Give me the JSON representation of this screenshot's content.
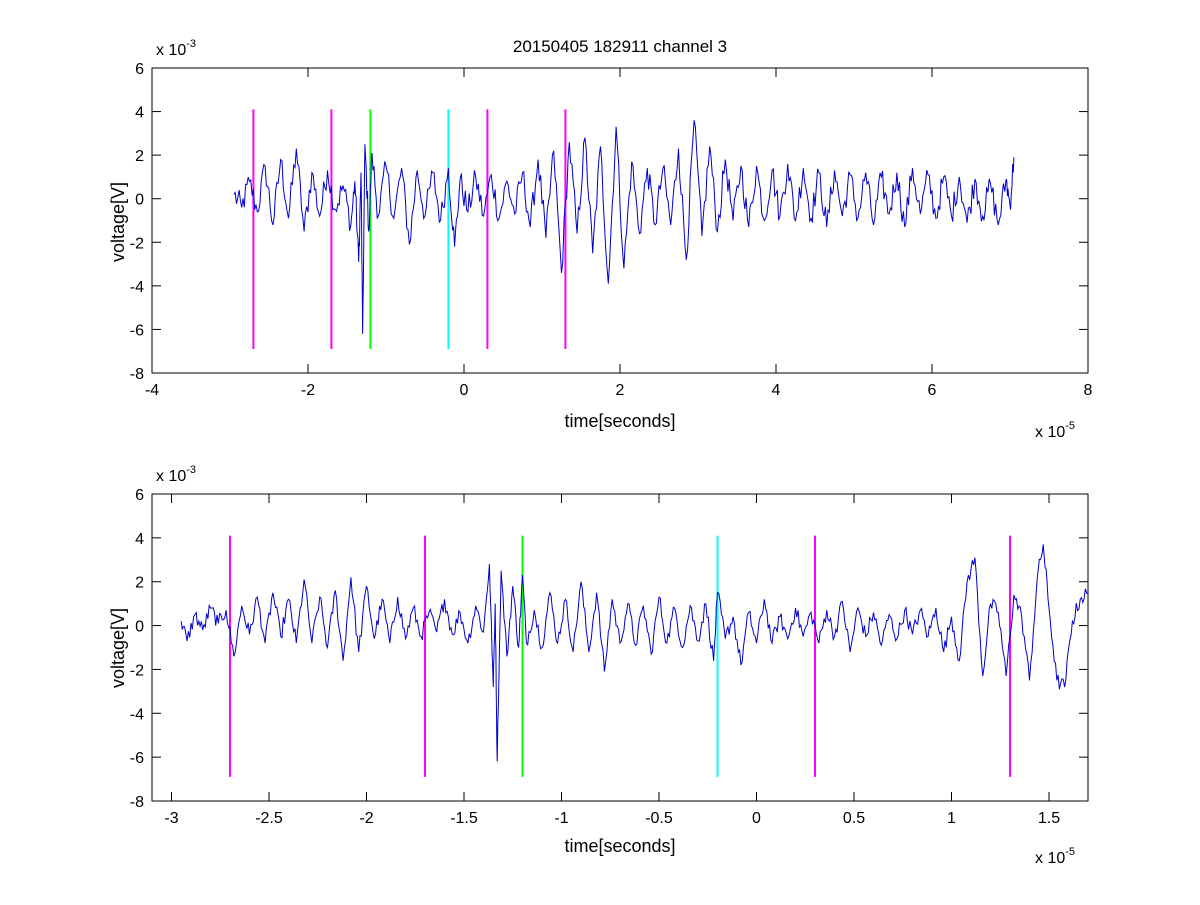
{
  "chart_data": [
    {
      "type": "line",
      "title": "20150405 182911 channel 3",
      "xlabel": "time[seconds]",
      "ylabel": "voltage[V]",
      "x_multiplier": {
        "base": "x 10",
        "exp": "-5"
      },
      "y_multiplier": {
        "base": "x 10",
        "exp": "-3"
      },
      "xlim": [
        -4,
        8
      ],
      "ylim": [
        -8,
        6
      ],
      "xticks": [
        "-4",
        "-2",
        "0",
        "2",
        "4",
        "6",
        "8"
      ],
      "xtick_values": [
        -4,
        -2,
        0,
        2,
        4,
        6,
        8
      ],
      "yticks": [
        "6",
        "4",
        "2",
        "0",
        "-2",
        "-4",
        "-6",
        "-8"
      ],
      "ytick_values": [
        6,
        4,
        2,
        0,
        -2,
        -4,
        -6,
        -8
      ],
      "grid": false,
      "series": [
        {
          "color": "#0000cc",
          "x_start": -2.95,
          "x_end": 7.05,
          "points": [
            [
              -2.95,
              0.2
            ],
            [
              -2.85,
              -0.4
            ],
            [
              -2.75,
              0.8
            ],
            [
              -2.65,
              -0.6
            ],
            [
              -2.55,
              1.5
            ],
            [
              -2.45,
              -1.2
            ],
            [
              -2.35,
              1.8
            ],
            [
              -2.25,
              -0.9
            ],
            [
              -2.15,
              2.3
            ],
            [
              -2.05,
              -1.5
            ],
            [
              -1.95,
              1.2
            ],
            [
              -1.85,
              -0.8
            ],
            [
              -1.75,
              1.3
            ],
            [
              -1.65,
              -0.5
            ],
            [
              -1.55,
              0.6
            ],
            [
              -1.45,
              -1.2
            ],
            [
              -1.4,
              0.8
            ],
            [
              -1.35,
              -2.9
            ],
            [
              -1.32,
              1.2
            ],
            [
              -1.3,
              -6.2
            ],
            [
              -1.27,
              2.5
            ],
            [
              -1.22,
              -1.5
            ],
            [
              -1.18,
              2.1
            ],
            [
              -1.1,
              -0.8
            ],
            [
              -1.0,
              1.5
            ],
            [
              -0.9,
              -0.9
            ],
            [
              -0.8,
              1.4
            ],
            [
              -0.7,
              -2.1
            ],
            [
              -0.6,
              1.3
            ],
            [
              -0.5,
              -0.8
            ],
            [
              -0.4,
              1.2
            ],
            [
              -0.3,
              -1.0
            ],
            [
              -0.2,
              1.4
            ],
            [
              -0.12,
              -2.2
            ],
            [
              -0.05,
              0.9
            ],
            [
              0.05,
              -0.6
            ],
            [
              0.15,
              1.0
            ],
            [
              0.25,
              -0.8
            ],
            [
              0.35,
              1.1
            ],
            [
              0.45,
              -0.9
            ],
            [
              0.55,
              0.8
            ],
            [
              0.65,
              -0.7
            ],
            [
              0.75,
              1.2
            ],
            [
              0.85,
              -1.3
            ],
            [
              0.95,
              1.8
            ],
            [
              1.05,
              -1.8
            ],
            [
              1.15,
              2.2
            ],
            [
              1.25,
              -3.4
            ],
            [
              1.35,
              2.6
            ],
            [
              1.45,
              -1.6
            ],
            [
              1.55,
              2.8
            ],
            [
              1.65,
              -2.5
            ],
            [
              1.75,
              2.4
            ],
            [
              1.85,
              -3.9
            ],
            [
              1.95,
              3.3
            ],
            [
              2.05,
              -3.2
            ],
            [
              2.15,
              1.7
            ],
            [
              2.25,
              -1.6
            ],
            [
              2.35,
              1.4
            ],
            [
              2.45,
              -1.2
            ],
            [
              2.55,
              1.4
            ],
            [
              2.65,
              -1.2
            ],
            [
              2.75,
              2.3
            ],
            [
              2.85,
              -2.8
            ],
            [
              2.95,
              3.6
            ],
            [
              3.05,
              -1.7
            ],
            [
              3.15,
              2.4
            ],
            [
              3.25,
              -1.5
            ],
            [
              3.35,
              1.8
            ],
            [
              3.45,
              -1.0
            ],
            [
              3.55,
              1.5
            ],
            [
              3.65,
              -1.3
            ],
            [
              3.75,
              1.5
            ],
            [
              3.85,
              -1.0
            ],
            [
              3.95,
              1.3
            ],
            [
              4.05,
              -0.8
            ],
            [
              4.15,
              1.6
            ],
            [
              4.25,
              -1.0
            ],
            [
              4.35,
              1.4
            ],
            [
              4.45,
              -0.9
            ],
            [
              4.55,
              1.2
            ],
            [
              4.65,
              -1.3
            ],
            [
              4.75,
              1.3
            ],
            [
              4.85,
              -0.8
            ],
            [
              4.95,
              1.1
            ],
            [
              5.05,
              -0.9
            ],
            [
              5.15,
              1.2
            ],
            [
              5.25,
              -1.2
            ],
            [
              5.35,
              1.0
            ],
            [
              5.45,
              -0.7
            ],
            [
              5.55,
              1.2
            ],
            [
              5.65,
              -1.3
            ],
            [
              5.75,
              1.4
            ],
            [
              5.85,
              -0.7
            ],
            [
              5.95,
              1.1
            ],
            [
              6.05,
              -0.9
            ],
            [
              6.15,
              1.0
            ],
            [
              6.25,
              -0.8
            ],
            [
              6.35,
              1.0
            ],
            [
              6.45,
              -1.1
            ],
            [
              6.55,
              0.9
            ],
            [
              6.65,
              -0.8
            ],
            [
              6.75,
              0.7
            ],
            [
              6.85,
              -1.2
            ],
            [
              6.95,
              0.9
            ],
            [
              7.0,
              -0.3
            ],
            [
              7.05,
              1.9
            ]
          ],
          "noise_amplitude": 0.6
        }
      ],
      "markers": [
        {
          "x": -2.7,
          "color": "#ff00ff",
          "y_top": 4.1,
          "y_bottom": -6.9
        },
        {
          "x": -1.7,
          "color": "#ff00ff",
          "y_top": 4.1,
          "y_bottom": -6.9
        },
        {
          "x": -1.2,
          "color": "#00ff00",
          "y_top": 4.1,
          "y_bottom": -6.9
        },
        {
          "x": -0.2,
          "color": "#00ffff",
          "y_top": 4.1,
          "y_bottom": -6.9
        },
        {
          "x": 0.3,
          "color": "#ff00ff",
          "y_top": 4.1,
          "y_bottom": -6.9
        },
        {
          "x": 1.3,
          "color": "#ff00ff",
          "y_top": 4.1,
          "y_bottom": -6.9
        }
      ]
    },
    {
      "type": "line",
      "title": "",
      "xlabel": "time[seconds]",
      "ylabel": "voltage[V]",
      "x_multiplier": {
        "base": "x 10",
        "exp": "-5"
      },
      "y_multiplier": {
        "base": "x 10",
        "exp": "-3"
      },
      "xlim": [
        -3.1,
        1.7
      ],
      "ylim": [
        -8,
        6
      ],
      "xticks": [
        "-3",
        "-2.5",
        "-2",
        "-1.5",
        "-1",
        "-0.5",
        "0",
        "0.5",
        "1",
        "1.5"
      ],
      "xtick_values": [
        -3,
        -2.5,
        -2,
        -1.5,
        -1,
        -0.5,
        0,
        0.5,
        1,
        1.5
      ],
      "yticks": [
        "6",
        "4",
        "2",
        "0",
        "-2",
        "-4",
        "-6",
        "-8"
      ],
      "ytick_values": [
        6,
        4,
        2,
        0,
        -2,
        -4,
        -6,
        -8
      ],
      "grid": false,
      "series": [
        {
          "color": "#0000cc",
          "x_start": -2.95,
          "x_end": 1.7,
          "points": [
            [
              -2.95,
              0.2
            ],
            [
              -2.92,
              -0.7
            ],
            [
              -2.88,
              0.5
            ],
            [
              -2.84,
              -0.2
            ],
            [
              -2.8,
              0.8
            ],
            [
              -2.76,
              0.1
            ],
            [
              -2.72,
              0.7
            ],
            [
              -2.68,
              -1.4
            ],
            [
              -2.64,
              0.9
            ],
            [
              -2.6,
              -0.4
            ],
            [
              -2.56,
              1.3
            ],
            [
              -2.52,
              -0.8
            ],
            [
              -2.48,
              1.5
            ],
            [
              -2.44,
              -0.5
            ],
            [
              -2.4,
              1.2
            ],
            [
              -2.36,
              -0.8
            ],
            [
              -2.32,
              2.1
            ],
            [
              -2.28,
              -0.8
            ],
            [
              -2.24,
              1.3
            ],
            [
              -2.2,
              -1.0
            ],
            [
              -2.16,
              1.6
            ],
            [
              -2.12,
              -1.6
            ],
            [
              -2.08,
              2.2
            ],
            [
              -2.04,
              -1.2
            ],
            [
              -2.0,
              1.8
            ],
            [
              -1.96,
              -0.6
            ],
            [
              -1.92,
              1.2
            ],
            [
              -1.88,
              -0.8
            ],
            [
              -1.84,
              1.3
            ],
            [
              -1.8,
              -0.6
            ],
            [
              -1.76,
              0.8
            ],
            [
              -1.72,
              -0.5
            ],
            [
              -1.68,
              0.6
            ],
            [
              -1.64,
              -0.3
            ],
            [
              -1.6,
              1.2
            ],
            [
              -1.56,
              -0.4
            ],
            [
              -1.52,
              0.6
            ],
            [
              -1.48,
              -0.8
            ],
            [
              -1.44,
              0.9
            ],
            [
              -1.4,
              -0.3
            ],
            [
              -1.37,
              2.8
            ],
            [
              -1.35,
              -2.8
            ],
            [
              -1.34,
              1.0
            ],
            [
              -1.33,
              -6.2
            ],
            [
              -1.31,
              2.5
            ],
            [
              -1.28,
              -1.4
            ],
            [
              -1.25,
              1.8
            ],
            [
              -1.22,
              -1.0
            ],
            [
              -1.2,
              2.3
            ],
            [
              -1.18,
              -0.8
            ],
            [
              -1.14,
              0.7
            ],
            [
              -1.1,
              -1.0
            ],
            [
              -1.06,
              1.5
            ],
            [
              -1.02,
              -0.8
            ],
            [
              -0.98,
              1.2
            ],
            [
              -0.94,
              -1.2
            ],
            [
              -0.9,
              2.0
            ],
            [
              -0.86,
              -1.2
            ],
            [
              -0.82,
              1.5
            ],
            [
              -0.78,
              -2.1
            ],
            [
              -0.74,
              1.2
            ],
            [
              -0.7,
              -0.8
            ],
            [
              -0.66,
              1.0
            ],
            [
              -0.62,
              -0.9
            ],
            [
              -0.58,
              0.9
            ],
            [
              -0.54,
              -1.3
            ],
            [
              -0.5,
              1.3
            ],
            [
              -0.46,
              -0.8
            ],
            [
              -0.42,
              0.8
            ],
            [
              -0.38,
              -1.0
            ],
            [
              -0.34,
              0.9
            ],
            [
              -0.3,
              -0.7
            ],
            [
              -0.26,
              1.0
            ],
            [
              -0.22,
              -1.6
            ],
            [
              -0.2,
              1.5
            ],
            [
              -0.16,
              -0.6
            ],
            [
              -0.12,
              0.4
            ],
            [
              -0.08,
              -1.8
            ],
            [
              -0.04,
              0.6
            ],
            [
              0.0,
              -0.8
            ],
            [
              0.04,
              1.2
            ],
            [
              0.08,
              -0.8
            ],
            [
              0.12,
              0.4
            ],
            [
              0.16,
              -0.6
            ],
            [
              0.2,
              0.8
            ],
            [
              0.24,
              -0.5
            ],
            [
              0.28,
              0.6
            ],
            [
              0.32,
              -0.8
            ],
            [
              0.36,
              0.7
            ],
            [
              0.4,
              -0.5
            ],
            [
              0.44,
              1.1
            ],
            [
              0.48,
              -1.2
            ],
            [
              0.52,
              0.8
            ],
            [
              0.56,
              -0.5
            ],
            [
              0.6,
              0.6
            ],
            [
              0.64,
              -0.9
            ],
            [
              0.68,
              0.5
            ],
            [
              0.72,
              -0.6
            ],
            [
              0.76,
              0.7
            ],
            [
              0.8,
              -0.4
            ],
            [
              0.84,
              0.7
            ],
            [
              0.88,
              -0.5
            ],
            [
              0.92,
              0.8
            ],
            [
              0.96,
              -1.2
            ],
            [
              1.0,
              0.4
            ],
            [
              1.04,
              -1.6
            ],
            [
              1.08,
              2.0
            ],
            [
              1.12,
              3.1
            ],
            [
              1.16,
              -2.3
            ],
            [
              1.2,
              1.0
            ],
            [
              1.24,
              0.6
            ],
            [
              1.28,
              -2.3
            ],
            [
              1.32,
              1.4
            ],
            [
              1.36,
              0.4
            ],
            [
              1.4,
              -2.5
            ],
            [
              1.44,
              2.2
            ],
            [
              1.47,
              3.7
            ],
            [
              1.5,
              0.8
            ],
            [
              1.54,
              -2.5
            ],
            [
              1.58,
              -2.8
            ],
            [
              1.62,
              0.2
            ],
            [
              1.66,
              1.2
            ],
            [
              1.7,
              1.5
            ]
          ],
          "noise_amplitude": 0.35
        }
      ],
      "markers": [
        {
          "x": -2.7,
          "color": "#ff00ff",
          "y_top": 4.1,
          "y_bottom": -6.9
        },
        {
          "x": -1.7,
          "color": "#ff00ff",
          "y_top": 4.1,
          "y_bottom": -6.9
        },
        {
          "x": -1.2,
          "color": "#00ff00",
          "y_top": 4.1,
          "y_bottom": -6.9
        },
        {
          "x": -0.2,
          "color": "#00ffff",
          "y_top": 4.1,
          "y_bottom": -6.9
        },
        {
          "x": 0.3,
          "color": "#ff00ff",
          "y_top": 4.1,
          "y_bottom": -6.9
        },
        {
          "x": 1.3,
          "color": "#ff00ff",
          "y_top": 4.1,
          "y_bottom": -6.9
        }
      ]
    }
  ]
}
